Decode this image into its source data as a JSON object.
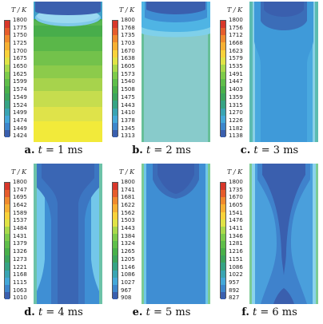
{
  "panels": [
    {
      "unit": "T / K",
      "caption": {
        "letter": "a.",
        "t": "t",
        "eq": "= 1 ms"
      },
      "ticks": [
        "1800",
        "1775",
        "1750",
        "1725",
        "1700",
        "1675",
        "1650",
        "1625",
        "1599",
        "1574",
        "1549",
        "1524",
        "1499",
        "1474",
        "1449",
        "1424"
      ],
      "colors": [
        "#d8372a",
        "#e65d2c",
        "#f08a2d",
        "#f6b033",
        "#f9d23a",
        "#e0e345",
        "#a9d94a",
        "#7dcb4a",
        "#5fbe4a",
        "#49b04a",
        "#3ca55c",
        "#36a384",
        "#3aa4b2",
        "#44a8d8",
        "#3c86cc",
        "#3a5fae"
      ]
    },
    {
      "unit": "T / K",
      "caption": {
        "letter": "b.",
        "t": "t",
        "eq": "= 2 ms"
      },
      "ticks": [
        "1800",
        "1768",
        "1735",
        "1703",
        "1670",
        "1638",
        "1605",
        "1573",
        "1540",
        "1508",
        "1475",
        "1443",
        "1410",
        "1378",
        "1345",
        "1313"
      ],
      "colors": [
        "#d8372a",
        "#e65d2c",
        "#f08a2d",
        "#f6b033",
        "#f9d23a",
        "#e0e345",
        "#a9d94a",
        "#7dcb4a",
        "#5fbe4a",
        "#49b04a",
        "#3ca55c",
        "#36a384",
        "#3aa4b2",
        "#44a8d8",
        "#3c86cc",
        "#3a5fae"
      ]
    },
    {
      "unit": "T / K",
      "caption": {
        "letter": "c.",
        "t": "t",
        "eq": "= 3 ms"
      },
      "ticks": [
        "1800",
        "1756",
        "1712",
        "1668",
        "1623",
        "1579",
        "1535",
        "1491",
        "1447",
        "1403",
        "1359",
        "1315",
        "1270",
        "1226",
        "1182",
        "1138"
      ],
      "colors": [
        "#d8372a",
        "#e65d2c",
        "#f08a2d",
        "#f6b033",
        "#f9d23a",
        "#e0e345",
        "#a9d94a",
        "#7dcb4a",
        "#5fbe4a",
        "#49b04a",
        "#3ca55c",
        "#36a384",
        "#3aa4b2",
        "#44a8d8",
        "#3c86cc",
        "#3a5fae"
      ]
    },
    {
      "unit": "T / K",
      "caption": {
        "letter": "d.",
        "t": "t",
        "eq": "= 4 ms"
      },
      "ticks": [
        "1800",
        "1747",
        "1695",
        "1642",
        "1589",
        "1537",
        "1484",
        "1431",
        "1379",
        "1326",
        "1273",
        "1221",
        "1168",
        "1115",
        "1063",
        "1010"
      ],
      "colors": [
        "#d8372a",
        "#e65d2c",
        "#f08a2d",
        "#f6b033",
        "#f9d23a",
        "#e0e345",
        "#a9d94a",
        "#7dcb4a",
        "#5fbe4a",
        "#49b04a",
        "#3ca55c",
        "#36a384",
        "#3aa4b2",
        "#44a8d8",
        "#3c86cc",
        "#3a5fae"
      ]
    },
    {
      "unit": "T / K",
      "caption": {
        "letter": "e.",
        "t": "t",
        "eq": "= 5 ms"
      },
      "ticks": [
        "1800",
        "1741",
        "1681",
        "1622",
        "1562",
        "1503",
        "1443",
        "1384",
        "1324",
        "1265",
        "1205",
        "1146",
        "1086",
        "1027",
        "967",
        "908"
      ],
      "colors": [
        "#d8372a",
        "#e65d2c",
        "#f08a2d",
        "#f6b033",
        "#f9d23a",
        "#e0e345",
        "#a9d94a",
        "#7dcb4a",
        "#5fbe4a",
        "#49b04a",
        "#3ca55c",
        "#36a384",
        "#3aa4b2",
        "#44a8d8",
        "#3c86cc",
        "#3a5fae"
      ]
    },
    {
      "unit": "T / K",
      "caption": {
        "letter": "f.",
        "t": "t",
        "eq": "= 6 ms"
      },
      "ticks": [
        "1800",
        "1735",
        "1670",
        "1605",
        "1541",
        "1476",
        "1411",
        "1346",
        "1281",
        "1216",
        "1151",
        "1086",
        "1022",
        "957",
        "892",
        "827"
      ],
      "colors": [
        "#d8372a",
        "#e65d2c",
        "#f08a2d",
        "#f6b033",
        "#f9d23a",
        "#e0e345",
        "#a9d94a",
        "#7dcb4a",
        "#5fbe4a",
        "#49b04a",
        "#3ca55c",
        "#36a384",
        "#3aa4b2",
        "#44a8d8",
        "#3c86cc",
        "#3a5fae"
      ]
    }
  ]
}
